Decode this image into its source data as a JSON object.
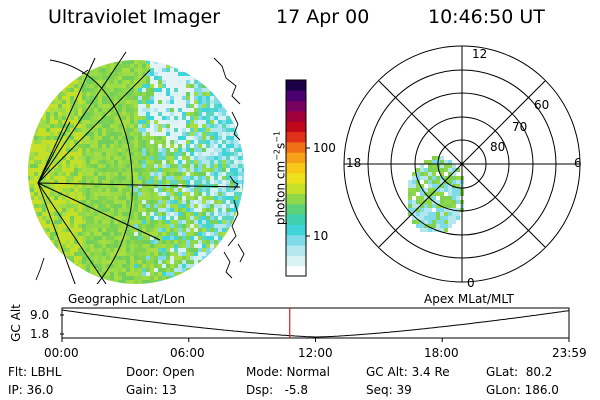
{
  "header": {
    "title": "Ultraviolet Imager",
    "date": "17 Apr 00",
    "time": "10:46:50 UT"
  },
  "colorbar": {
    "label": "photon cm-2s-1",
    "label_main": "photon cm",
    "label_exp1": "−2",
    "label_s": "s",
    "label_exp2": "−1",
    "ticks": [
      "100",
      "10"
    ],
    "colors": [
      "#ffffff",
      "#d8f2f4",
      "#b4e6ee",
      "#7fdbe8",
      "#3fd4d8",
      "#3fd0b0",
      "#5bd27a",
      "#8fd84a",
      "#c6e028",
      "#eee21c",
      "#f8c818",
      "#f8a018",
      "#f07018",
      "#e03018",
      "#c00818",
      "#a0003c",
      "#780060",
      "#4a0070",
      "#1c0048"
    ]
  },
  "left_panel": {
    "label": "Geographic Lat/Lon"
  },
  "right_panel": {
    "label": "Apex MLat/MLT",
    "mlt_labels": [
      "12",
      "18",
      "6",
      "0"
    ],
    "lat_labels": [
      "60",
      "70",
      "80"
    ]
  },
  "timeline": {
    "ylabel": "GC Alt",
    "yticks": [
      "9.0",
      "1.8"
    ],
    "xticks": [
      "00:00",
      "06:00",
      "12:00",
      "18:00",
      "23:59"
    ],
    "current_hour": 10.78,
    "marker_color": "#d02020"
  },
  "info": {
    "flt": "Flt: LBHL",
    "ip": "IP: 36.0",
    "door": "Door: Open",
    "gain": "Gain: 13",
    "mode": "Mode: Normal",
    "dsp": "Dsp:   -5.8",
    "gcalt": "GC Alt: 3.4 Re",
    "seq": "Seq: 39",
    "glat": "GLat:  80.2",
    "glon": "GLon: 186.0"
  }
}
